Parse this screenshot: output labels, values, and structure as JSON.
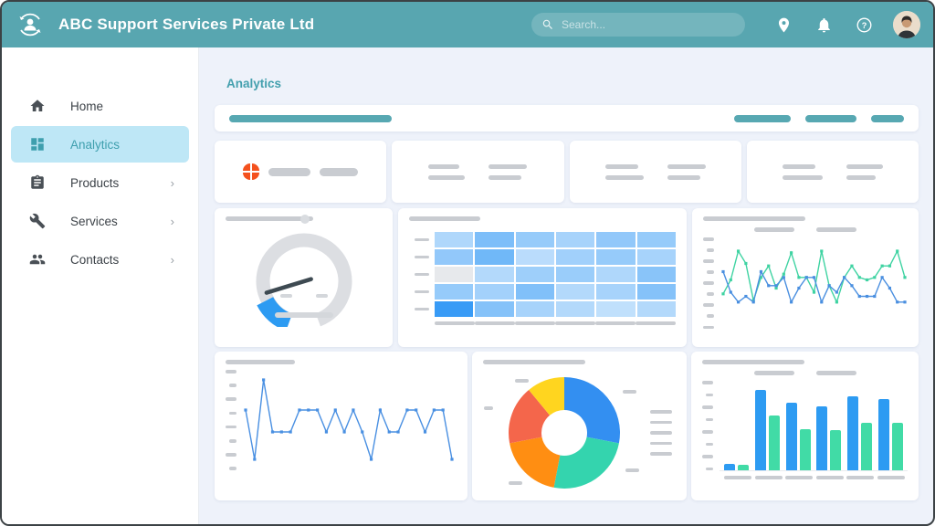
{
  "header": {
    "title": "ABC Support Services Private Ltd",
    "search_placeholder": "Search...",
    "icons": [
      "logo-sync-user-icon",
      "search-icon",
      "location-pin-icon",
      "bell-icon",
      "help-icon",
      "user-avatar"
    ]
  },
  "sidebar": {
    "items": [
      {
        "key": "home",
        "label": "Home",
        "icon": "home-icon",
        "active": false,
        "has_children": false
      },
      {
        "key": "analytics",
        "label": "Analytics",
        "icon": "dashboard-icon",
        "active": true,
        "has_children": false
      },
      {
        "key": "products",
        "label": "Products",
        "icon": "clipboard-icon",
        "active": false,
        "has_children": true
      },
      {
        "key": "services",
        "label": "Services",
        "icon": "wrench-icon",
        "active": false,
        "has_children": true
      },
      {
        "key": "contacts",
        "label": "Contacts",
        "icon": "people-icon",
        "active": false,
        "has_children": true
      }
    ]
  },
  "main": {
    "heading": "Analytics"
  },
  "colors": {
    "header_teal": "#58A6B0",
    "accent_teal": "#57A8B2",
    "active_nav_bg": "#BEE7F6",
    "active_nav_text": "#3E9FAE",
    "stat_icon_orange": "#F4511E",
    "chart_blue": "#3B8FE8",
    "chart_mint": "#3FD3A2",
    "bar_blue": "#2D9BF2",
    "bar_mint": "#41DBA6",
    "gauge_ring": "#DCDEE2",
    "gauge_active": "#2D9BF2",
    "gauge_needle": "#3E4A52",
    "placeholder_gray": "#C9CCD1"
  },
  "chart_data": [
    {
      "id": "gauge",
      "type": "gauge",
      "ring_color": "#DCDEE2",
      "active_color": "#2D9BF2",
      "needle_color": "#3E4A52",
      "ring_start_deg": 290,
      "ring_end_deg": 250,
      "active_start_deg": 207,
      "active_end_deg": 250,
      "needle_angle_deg": 197
    },
    {
      "id": "heatmap",
      "type": "heatmap",
      "rows": 5,
      "cols": 6,
      "base_color_rgb": [
        45,
        150,
        245
      ],
      "empty_color": "#E7E9EC",
      "cells": [
        [
          0.38,
          0.62,
          0.5,
          0.42,
          0.52,
          0.5
        ],
        [
          0.52,
          0.68,
          0.33,
          0.45,
          0.5,
          0.42
        ],
        [
          null,
          0.36,
          0.46,
          0.48,
          0.38,
          0.56
        ],
        [
          0.5,
          0.44,
          0.6,
          0.36,
          0.42,
          0.58
        ],
        [
          0.95,
          0.58,
          0.42,
          0.36,
          0.3,
          0.36
        ]
      ]
    },
    {
      "id": "dual-line",
      "type": "line",
      "ylim": [
        0,
        100
      ],
      "y_ticks": 9,
      "legend_placeholders": 2,
      "series": [
        {
          "name": "series-green",
          "color": "#3FD3A2",
          "values": [
            38,
            55,
            90,
            75,
            30,
            58,
            72,
            45,
            62,
            88,
            58,
            58,
            40,
            90,
            48,
            28,
            58,
            72,
            58,
            55,
            58,
            72,
            72,
            90,
            58
          ]
        },
        {
          "name": "series-blue",
          "color": "#4A8FE0",
          "values": [
            65,
            40,
            28,
            35,
            28,
            65,
            48,
            48,
            58,
            28,
            45,
            58,
            58,
            28,
            48,
            40,
            58,
            48,
            35,
            35,
            35,
            58,
            45,
            28,
            28
          ]
        }
      ]
    },
    {
      "id": "single-line",
      "type": "line",
      "ylim": [
        0,
        100
      ],
      "y_ticks": 8,
      "series": [
        {
          "name": "series-blue",
          "color": "#4A90E2",
          "values": [
            62,
            8,
            95,
            38,
            38,
            38,
            62,
            62,
            62,
            38,
            62,
            38,
            62,
            38,
            8,
            62,
            38,
            38,
            62,
            62,
            38,
            62,
            62,
            8
          ]
        }
      ]
    },
    {
      "id": "donut",
      "type": "pie",
      "legend_placeholders": 5,
      "callout_placeholders": 5,
      "slices": [
        {
          "name": "slice-blue",
          "color": "#338FF1",
          "value": 28
        },
        {
          "name": "slice-green",
          "color": "#34D4AE",
          "value": 25
        },
        {
          "name": "slice-orange",
          "color": "#FF8E12",
          "value": 19
        },
        {
          "name": "slice-coral",
          "color": "#F4664B",
          "value": 17
        },
        {
          "name": "slice-yellow",
          "color": "#FFD51F",
          "value": 11
        }
      ]
    },
    {
      "id": "grouped-bar",
      "type": "bar",
      "categories_count": 6,
      "y_ticks": 8,
      "legend_placeholders": 2,
      "series": [
        {
          "name": "series-blue",
          "color": "#2D9BF2",
          "values": [
            7,
            88,
            74,
            70,
            81,
            78
          ]
        },
        {
          "name": "series-mint",
          "color": "#41DBA6",
          "values": [
            6,
            60,
            45,
            44,
            52,
            52
          ]
        }
      ]
    }
  ]
}
